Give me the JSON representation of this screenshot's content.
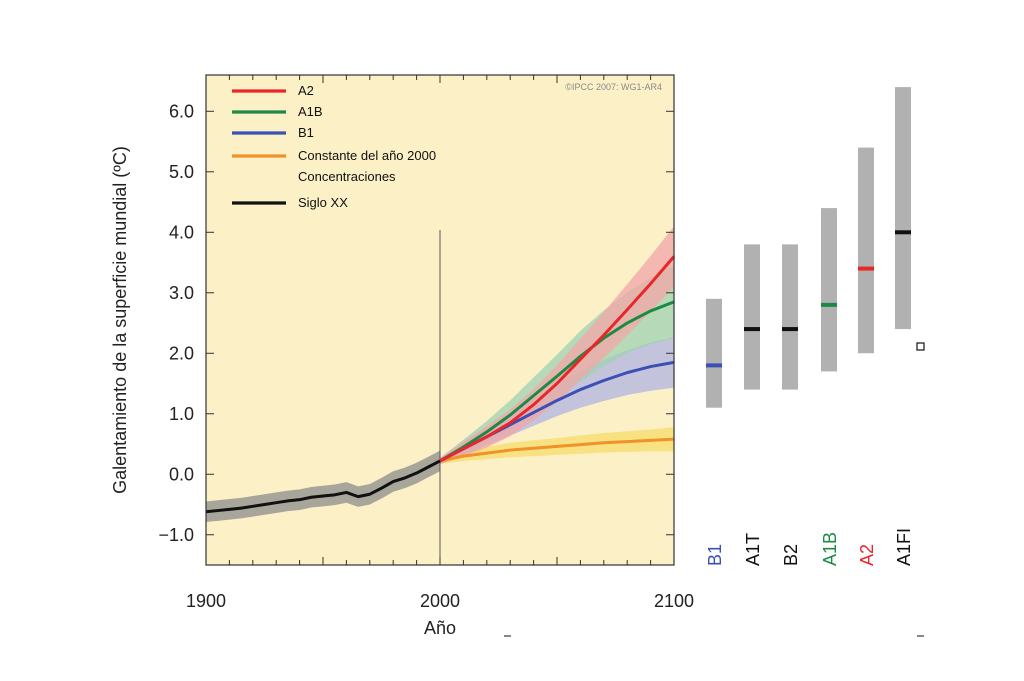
{
  "chart_data": {
    "type": "line",
    "xlabel": "Año",
    "ylabel": "Galentamiento de la superficie mundial (ºC)",
    "xlim": [
      1900,
      2100
    ],
    "ylim": [
      -1.5,
      6.6
    ],
    "x_ticks": [
      "1900",
      "2000",
      "2100"
    ],
    "y_ticks": [
      "6.0",
      "5.0",
      "4.0",
      "3.0",
      "2.0",
      "1.0",
      "0.0",
      "−1.0"
    ],
    "credit": "©IPCC 2007: WG1-AR4",
    "background": "#fbf0c6",
    "divider_year": 2000,
    "grid": false,
    "legend_position": "top-left",
    "legend": [
      {
        "label": "A2",
        "color": "#e8262b"
      },
      {
        "label": "A1B",
        "color": "#1b8a45"
      },
      {
        "label": "B1",
        "color": "#3b4fb5"
      },
      {
        "label": "Constante del año 2000",
        "label2": "Concentraciones",
        "color": "#f0912a"
      },
      {
        "label": "Siglo XX",
        "color": "#111111"
      }
    ],
    "series": [
      {
        "name": "Siglo XX",
        "color": "#111111",
        "band_color": "#8c8c8c",
        "x": [
          1900,
          1905,
          1910,
          1915,
          1920,
          1925,
          1930,
          1935,
          1940,
          1945,
          1950,
          1955,
          1960,
          1965,
          1970,
          1975,
          1980,
          1985,
          1990,
          1995,
          2000
        ],
        "y": [
          -0.62,
          -0.6,
          -0.58,
          -0.56,
          -0.53,
          -0.5,
          -0.47,
          -0.44,
          -0.42,
          -0.38,
          -0.36,
          -0.34,
          -0.3,
          -0.37,
          -0.33,
          -0.23,
          -0.12,
          -0.06,
          0.02,
          0.12,
          0.22
        ],
        "band": 0.17
      },
      {
        "name": "A2",
        "color": "#e8262b",
        "band_color": "#f2a6a8",
        "x": [
          2000,
          2010,
          2020,
          2030,
          2040,
          2050,
          2060,
          2070,
          2080,
          2090,
          2100
        ],
        "y": [
          0.22,
          0.42,
          0.62,
          0.85,
          1.15,
          1.5,
          1.9,
          2.3,
          2.72,
          3.15,
          3.6
        ],
        "band": [
          0.05,
          0.12,
          0.18,
          0.22,
          0.26,
          0.3,
          0.34,
          0.38,
          0.42,
          0.46,
          0.5
        ]
      },
      {
        "name": "A1B",
        "color": "#1b8a45",
        "band_color": "#9fd3b1",
        "x": [
          2000,
          2010,
          2020,
          2030,
          2040,
          2050,
          2060,
          2070,
          2080,
          2090,
          2100
        ],
        "y": [
          0.22,
          0.45,
          0.7,
          0.98,
          1.3,
          1.62,
          1.95,
          2.25,
          2.5,
          2.7,
          2.85
        ],
        "band": [
          0.05,
          0.12,
          0.18,
          0.24,
          0.3,
          0.36,
          0.42,
          0.46,
          0.5,
          0.55,
          0.6
        ]
      },
      {
        "name": "B1",
        "color": "#3b4fb5",
        "band_color": "#b0b6e3",
        "x": [
          2000,
          2010,
          2020,
          2030,
          2040,
          2050,
          2060,
          2070,
          2080,
          2090,
          2100
        ],
        "y": [
          0.22,
          0.42,
          0.62,
          0.82,
          1.02,
          1.22,
          1.4,
          1.55,
          1.68,
          1.78,
          1.85
        ],
        "band": [
          0.05,
          0.1,
          0.14,
          0.18,
          0.22,
          0.26,
          0.3,
          0.34,
          0.37,
          0.4,
          0.42
        ]
      },
      {
        "name": "Constante del año 2000 Concentraciones",
        "color": "#f0912a",
        "band_color": "#f7dc6a",
        "x": [
          2000,
          2010,
          2020,
          2030,
          2040,
          2050,
          2060,
          2070,
          2080,
          2090,
          2100
        ],
        "y": [
          0.22,
          0.3,
          0.35,
          0.4,
          0.43,
          0.46,
          0.49,
          0.52,
          0.54,
          0.56,
          0.58
        ],
        "band": [
          0.05,
          0.08,
          0.1,
          0.12,
          0.13,
          0.14,
          0.15,
          0.16,
          0.17,
          0.18,
          0.2
        ]
      }
    ],
    "scenario_ranges": [
      {
        "label": "B1",
        "low": 1.1,
        "high": 2.9,
        "best": 1.8,
        "color": "#3b4fb5",
        "best_color": "#3b4fb5"
      },
      {
        "label": "A1T",
        "low": 1.4,
        "high": 3.8,
        "best": 2.4,
        "color": "#111111",
        "best_color": "#111111"
      },
      {
        "label": "B2",
        "low": 1.4,
        "high": 3.8,
        "best": 2.4,
        "color": "#111111",
        "best_color": "#111111"
      },
      {
        "label": "A1B",
        "low": 1.7,
        "high": 4.4,
        "best": 2.8,
        "color": "#1b8a45",
        "best_color": "#1b8a45"
      },
      {
        "label": "A2",
        "low": 2.0,
        "high": 5.4,
        "best": 3.4,
        "color": "#e8262b",
        "best_color": "#e8262b"
      },
      {
        "label": "A1FI",
        "low": 2.4,
        "high": 6.4,
        "best": 4.0,
        "color": "#111111",
        "best_color": "#111111"
      }
    ]
  }
}
